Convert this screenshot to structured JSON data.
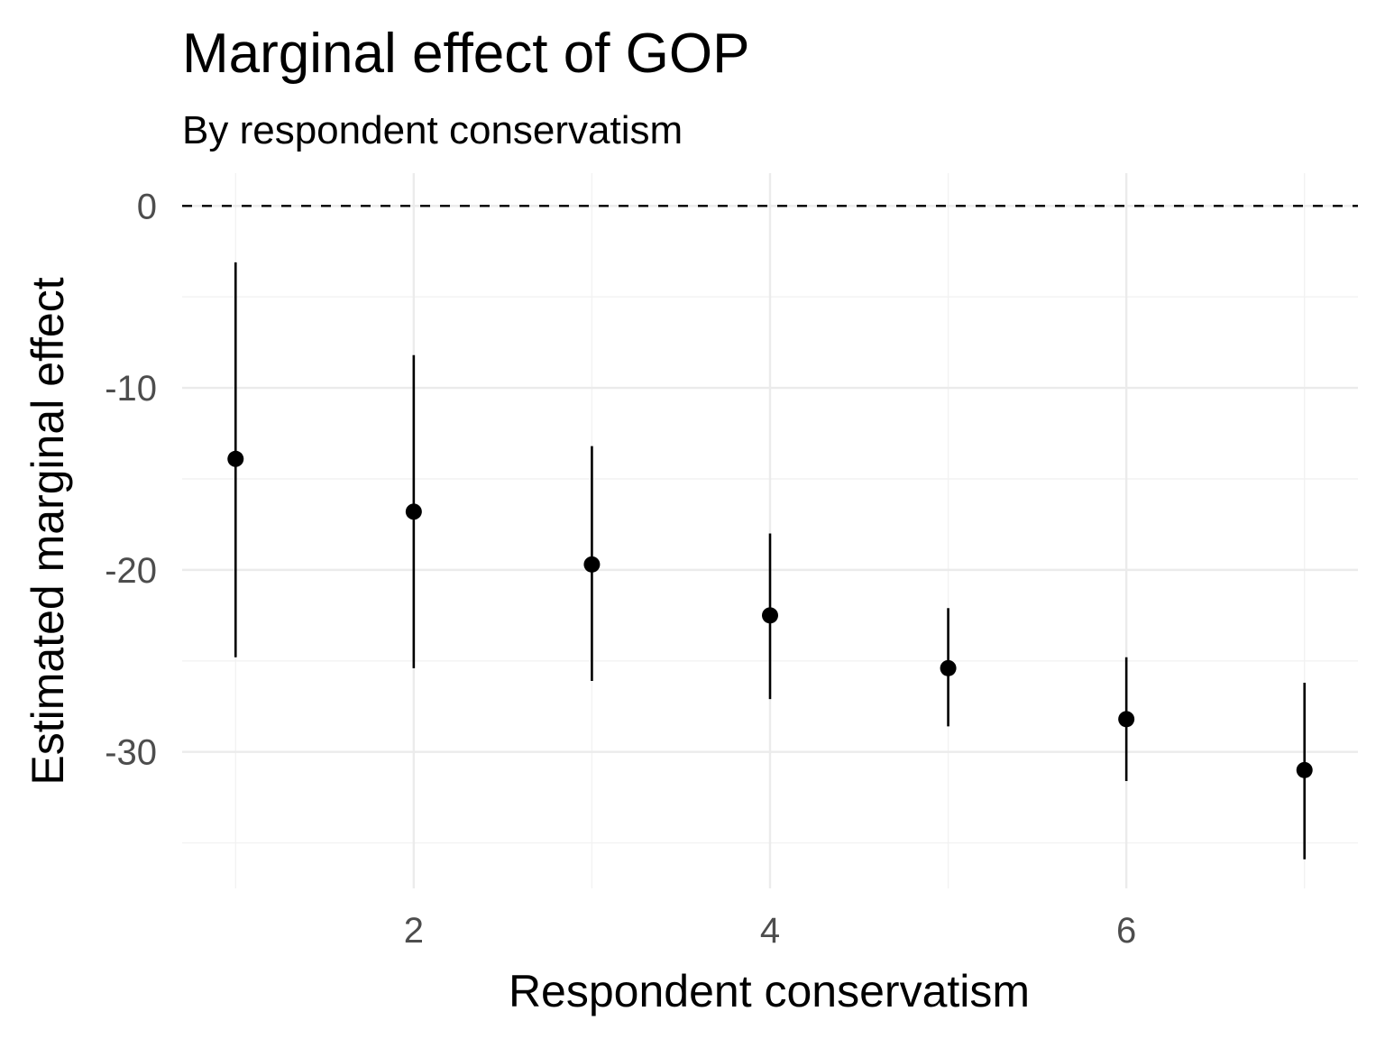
{
  "chart_data": {
    "type": "scatter",
    "title": "Marginal effect of GOP",
    "subtitle": "By respondent conservatism",
    "xlabel": "Respondent conservatism",
    "ylabel": "Estimated marginal effect",
    "xlim": [
      0.7,
      7.3
    ],
    "ylim": [
      -37.5,
      1.8
    ],
    "x_ticks": [
      2,
      4,
      6
    ],
    "x_tick_labels": [
      "2",
      "4",
      "6"
    ],
    "y_ticks": [
      0,
      -10,
      -20,
      -30
    ],
    "y_tick_labels": [
      "0",
      "-10",
      "-20",
      "-30"
    ],
    "x_minor": [
      1,
      3,
      5,
      7
    ],
    "y_minor": [
      -5,
      -15,
      -25,
      -35
    ],
    "reference_line": {
      "y": 0,
      "style": "dashed"
    },
    "grid": true,
    "points": [
      {
        "x": 1,
        "y": -13.9,
        "lower": -24.8,
        "upper": -3.1
      },
      {
        "x": 2,
        "y": -16.8,
        "lower": -25.4,
        "upper": -8.2
      },
      {
        "x": 3,
        "y": -19.7,
        "lower": -26.1,
        "upper": -13.2
      },
      {
        "x": 4,
        "y": -22.5,
        "lower": -27.1,
        "upper": -18.0
      },
      {
        "x": 5,
        "y": -25.4,
        "lower": -28.6,
        "upper": -22.1
      },
      {
        "x": 6,
        "y": -28.2,
        "lower": -31.6,
        "upper": -24.8
      },
      {
        "x": 7,
        "y": -31.0,
        "lower": -35.9,
        "upper": -26.2
      }
    ]
  }
}
